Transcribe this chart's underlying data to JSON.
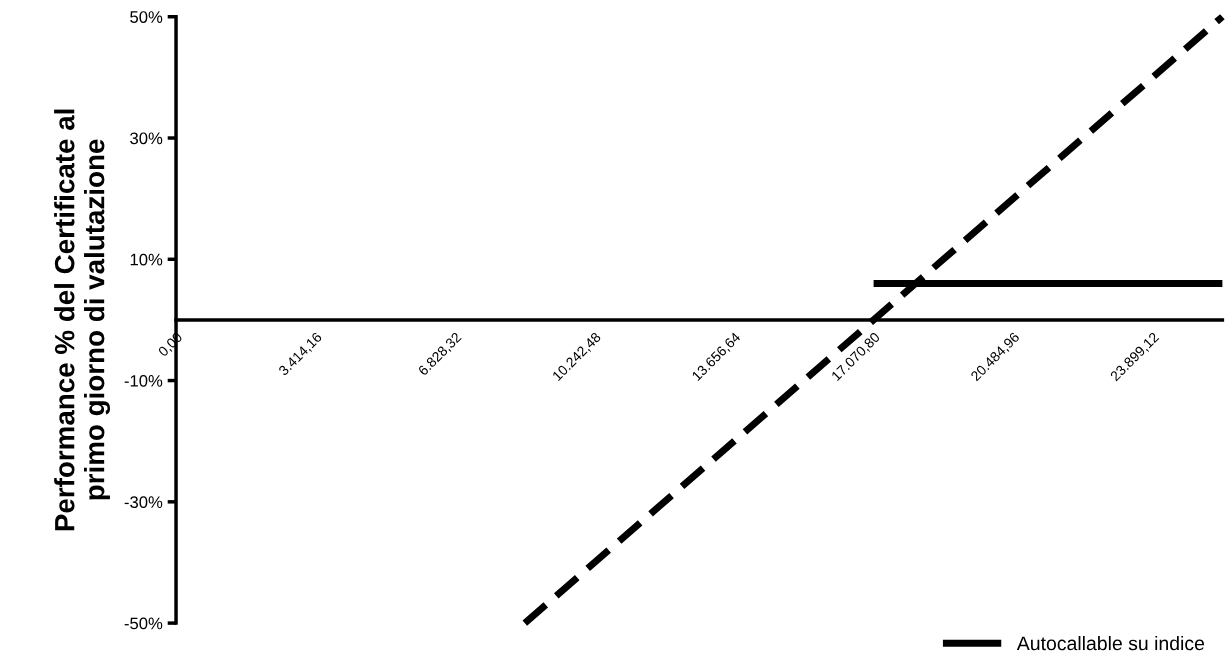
{
  "chart_data": {
    "type": "line",
    "ylabel": "Performance % del Certificate al\nprimo giorno di valutazione",
    "xlim": [
      0,
      25606.2
    ],
    "xticks": [
      {
        "value": 0,
        "label": "0,00"
      },
      {
        "value": 3414.16,
        "label": "3.414,16"
      },
      {
        "value": 6828.32,
        "label": "6.828,32"
      },
      {
        "value": 10242.48,
        "label": "10.242,48"
      },
      {
        "value": 13656.64,
        "label": "13.656,64"
      },
      {
        "value": 17070.8,
        "label": "17.070,80"
      },
      {
        "value": 20484.96,
        "label": "20.484,96"
      },
      {
        "value": 23899.12,
        "label": "23.899,12"
      }
    ],
    "ylim": [
      -50,
      50
    ],
    "yticks": [
      {
        "value": -50,
        "label": "-50%"
      },
      {
        "value": -30,
        "label": "-30%"
      },
      {
        "value": -10,
        "label": "-10%"
      },
      {
        "value": 10,
        "label": "10%"
      },
      {
        "value": 30,
        "label": "30%"
      },
      {
        "value": 50,
        "label": "50%"
      }
    ],
    "grid": false,
    "legend": "bottom right",
    "marker": "none",
    "series": [
      {
        "color": "#000000",
        "line_style": "dashed",
        "x": [
          8535.4,
          25606.2
        ],
        "values": [
          -50,
          50
        ]
      },
      {
        "name": "Autocallable su indice",
        "color": "#000000",
        "line_style": "solid",
        "x": [
          17070.8,
          25606.2
        ],
        "values": [
          6,
          6
        ]
      }
    ]
  }
}
